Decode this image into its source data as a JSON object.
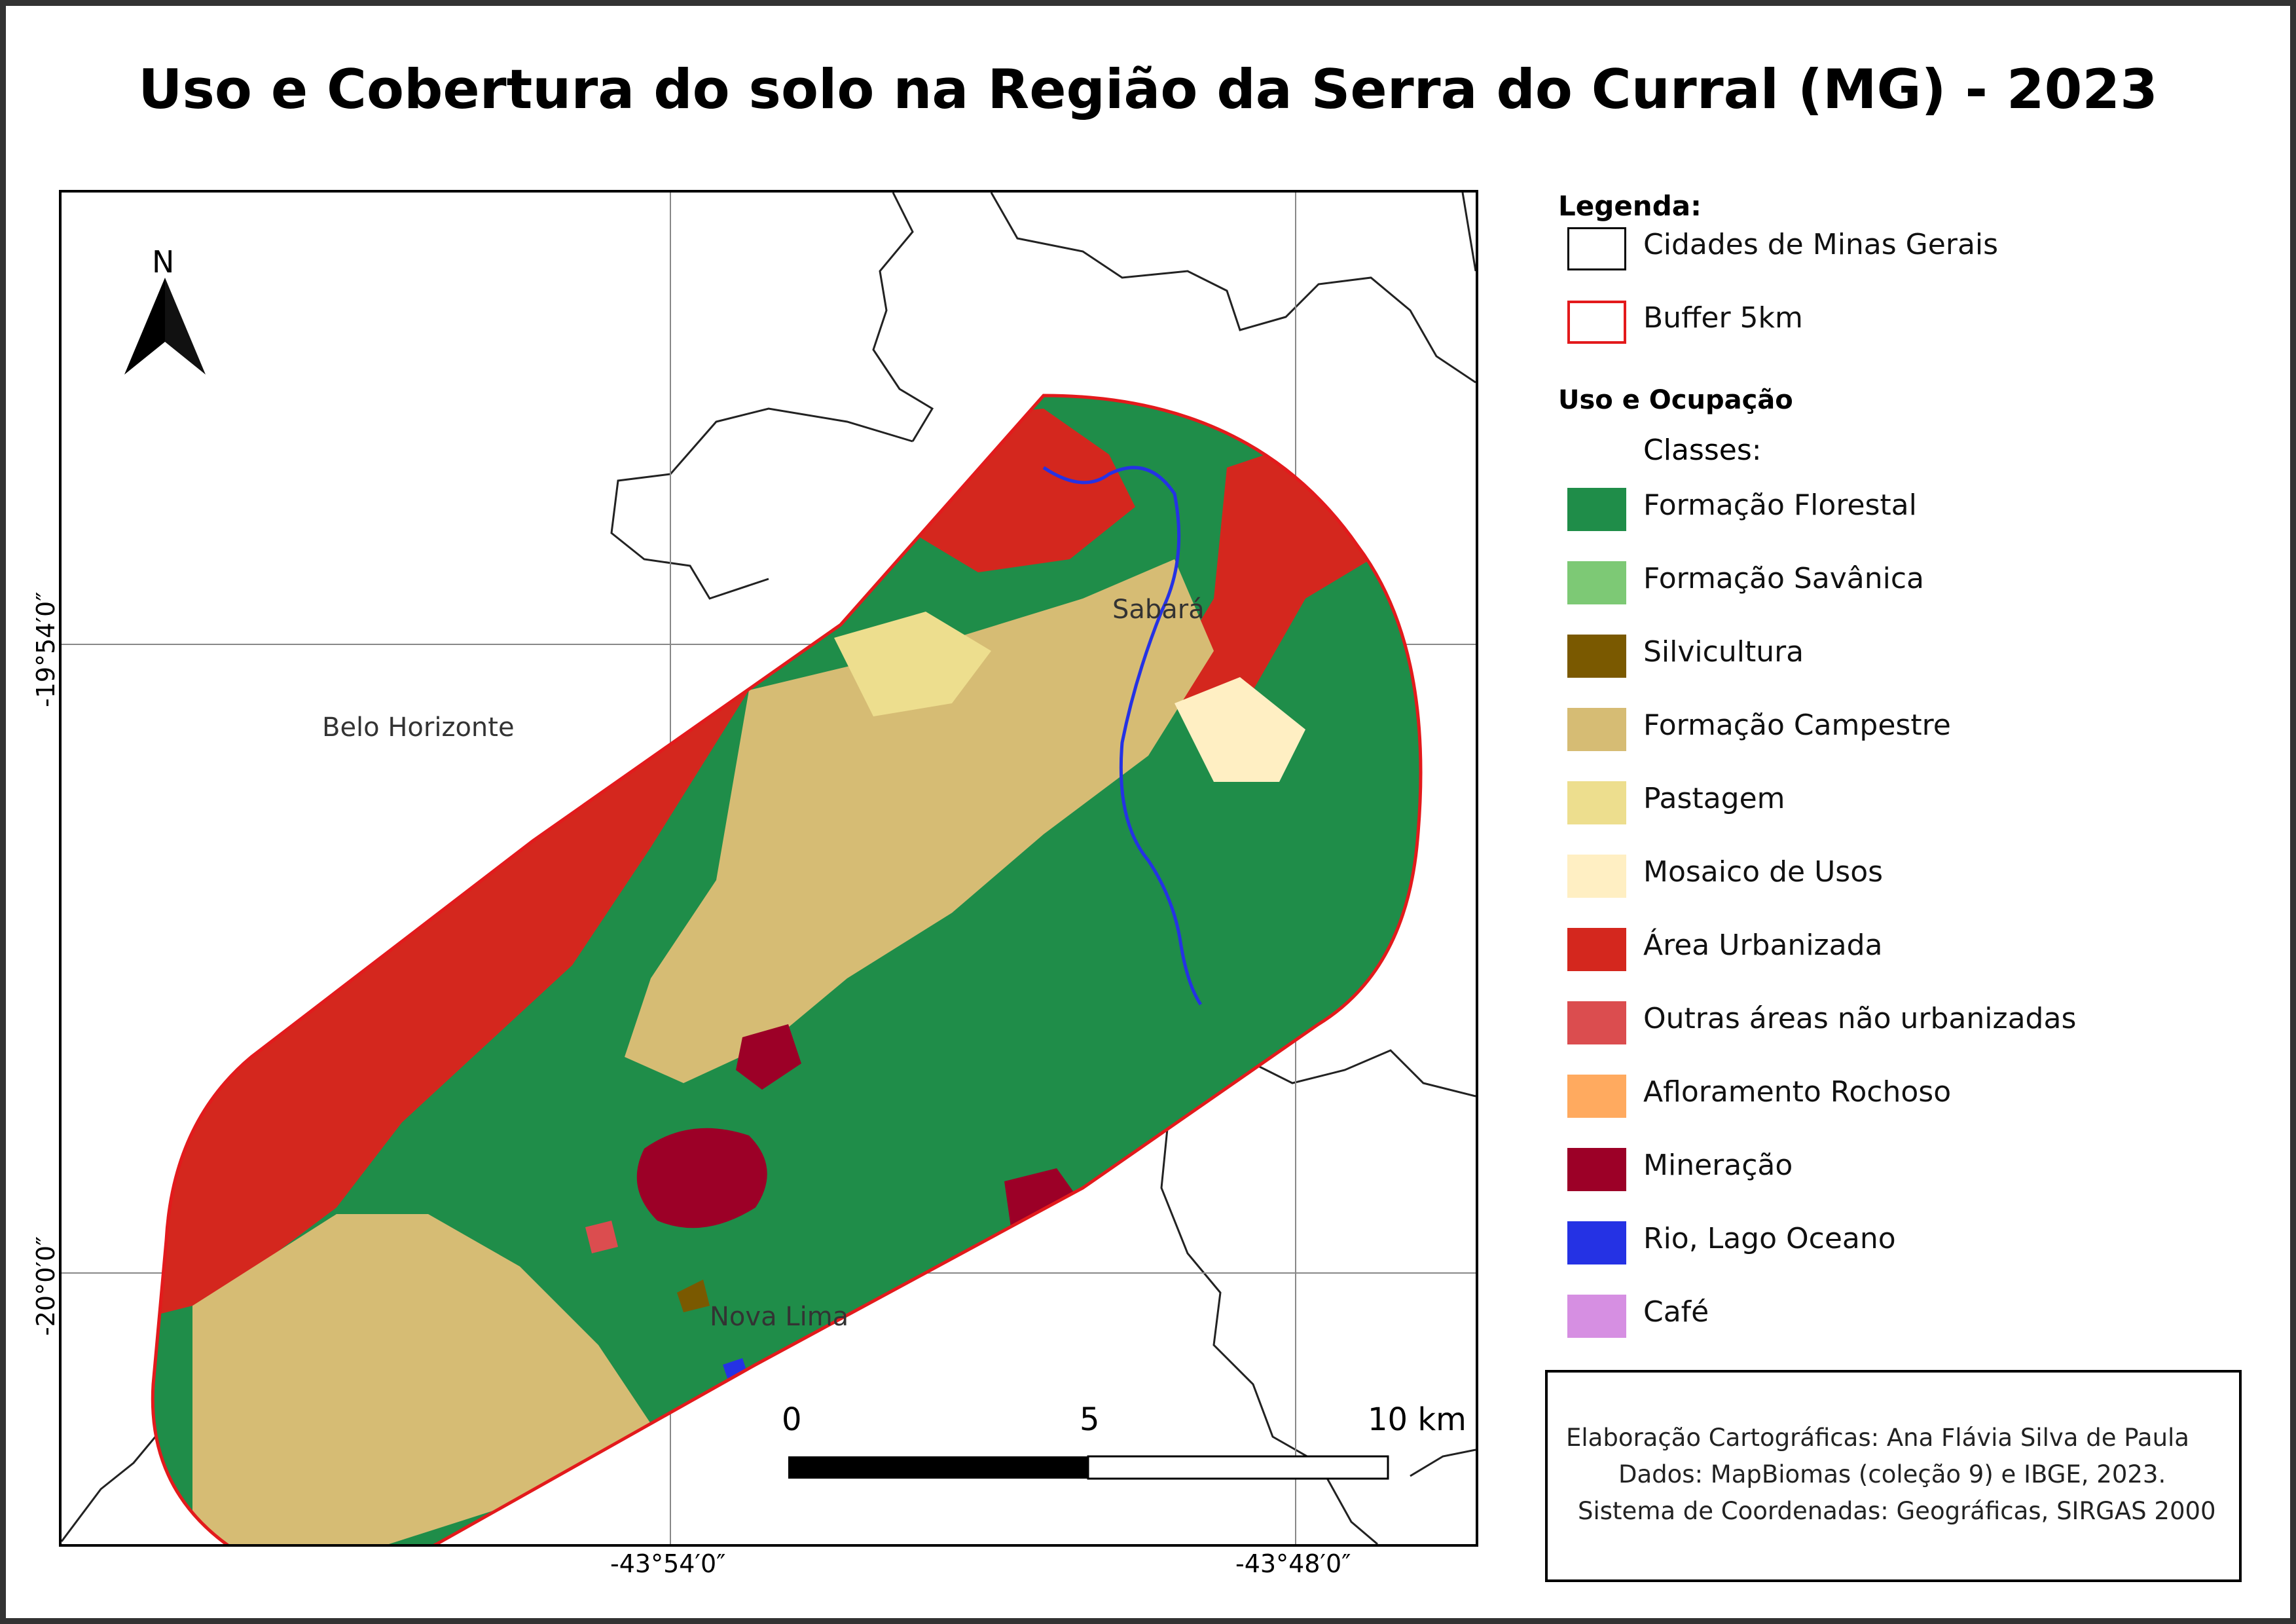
{
  "title": "Uso e Cobertura do solo na Região da Serra do Curral (MG) - 2023",
  "map": {
    "north_arrow_label": "N",
    "grid_labels": {
      "lat_top": "-19°54′0″",
      "lat_bottom": "-20°0′0″",
      "lon_left": "-43°54′0″",
      "lon_right": "-43°48′0″"
    },
    "places": {
      "belo_horizonte": "Belo Horizonte",
      "sabara": "Sabará",
      "nova_lima": "Nova Lima"
    },
    "scale_bar": {
      "label_0": "0",
      "label_5": "5",
      "label_10": "10 km"
    }
  },
  "legend": {
    "heading": "Legenda:",
    "boundaries": [
      {
        "label": "Cidades de Minas Gerais",
        "fill": "#ffffff",
        "stroke": "#000000"
      },
      {
        "label": "Buffer 5km",
        "fill": "#ffffff",
        "stroke": "#e31a1c"
      }
    ],
    "land_use_heading": "Uso e Ocupação",
    "classes_label": "Classes:",
    "classes": [
      {
        "label": "Formação Florestal",
        "color": "#1f8d49"
      },
      {
        "label": "Formação Savânica",
        "color": "#7dc975"
      },
      {
        "label": "Silvicultura",
        "color": "#7a5900"
      },
      {
        "label": "Formação Campestre",
        "color": "#d6bc74"
      },
      {
        "label": "Pastagem",
        "color": "#edde8e"
      },
      {
        "label": "Mosaico de Usos",
        "color": "#ffefc3"
      },
      {
        "label": "Área Urbanizada",
        "color": "#d4271e"
      },
      {
        "label": "Outras áreas não urbanizadas",
        "color": "#db4d4f"
      },
      {
        "label": "Afloramento Rochoso",
        "color": "#ffaa5f"
      },
      {
        "label": "Mineração",
        "color": "#9c0027"
      },
      {
        "label": "Rio, Lago Oceano",
        "color": "#2532e4"
      },
      {
        "label": "Café",
        "color": "#d68fe2"
      }
    ]
  },
  "credits": {
    "line1": "Elaboração Cartográficas: Ana Flávia Silva de Paula",
    "line2": "Dados: MapBiomas (coleção 9) e IBGE, 2023.",
    "line3": "Sistema de Coordenadas: Geográficas, SIRGAS 2000"
  }
}
